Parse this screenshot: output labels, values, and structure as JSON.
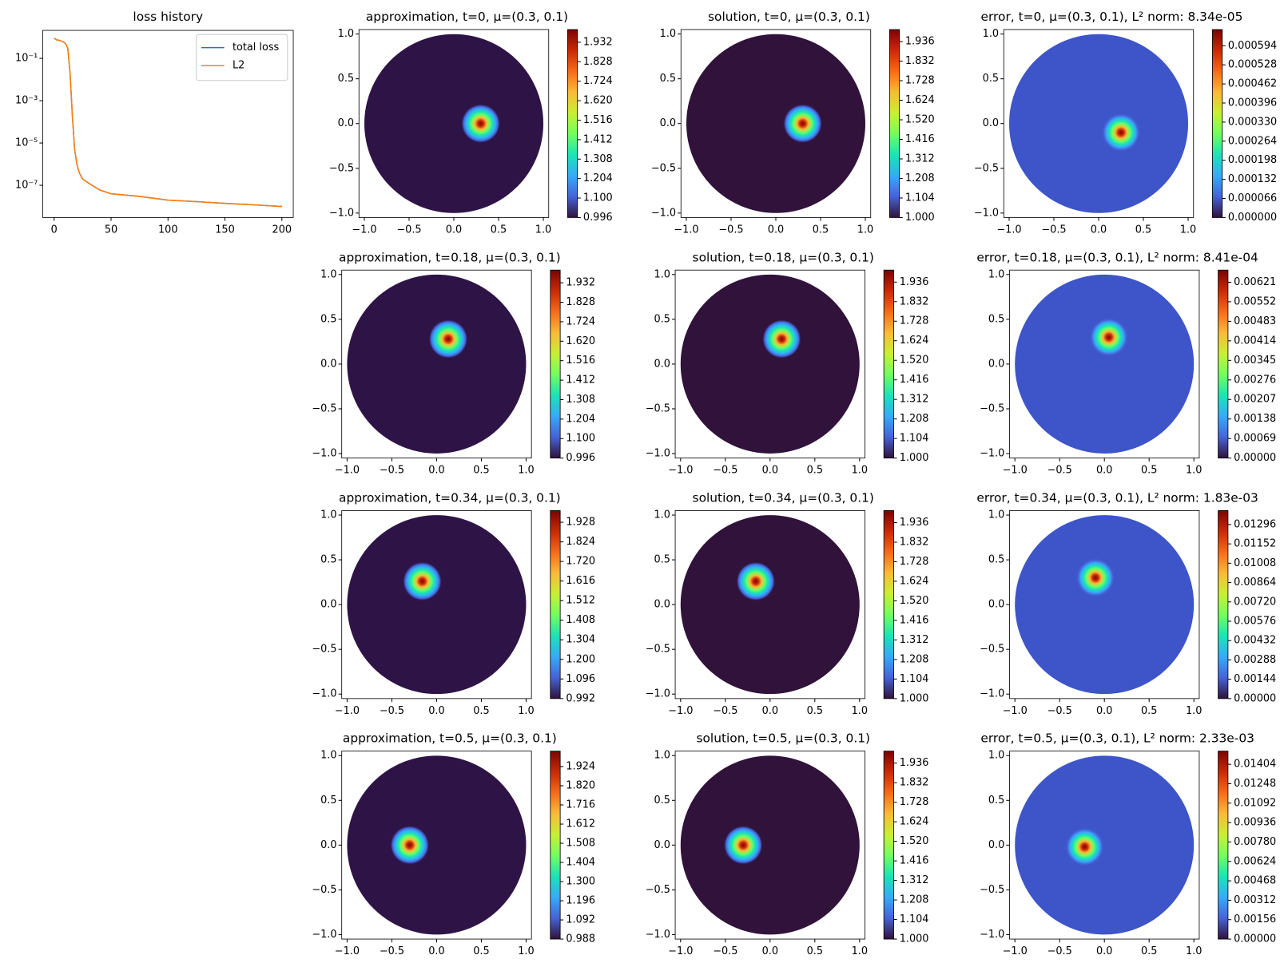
{
  "chart_data": [
    {
      "type": "line",
      "title": "loss history",
      "yscale": "log",
      "legend": "upper right",
      "x": [
        0,
        2,
        5,
        8,
        10,
        12,
        14,
        16,
        18,
        20,
        22,
        25,
        30,
        40,
        50,
        75,
        100,
        125,
        150,
        175,
        200
      ],
      "series": [
        {
          "name": "total loss",
          "color": "#1f77b4",
          "values": [
            0.9,
            0.75,
            0.7,
            0.6,
            0.5,
            0.3,
            0.02,
            0.0002,
            5e-06,
            1e-06,
            4e-07,
            2e-07,
            1.3e-07,
            6e-08,
            4e-08,
            3e-08,
            2e-08,
            1.7e-08,
            1.4e-08,
            1.2e-08,
            1e-08
          ]
        },
        {
          "name": "L2",
          "color": "#ff7f0e",
          "values": [
            0.9,
            0.76,
            0.7,
            0.6,
            0.5,
            0.3,
            0.02,
            0.0002,
            5e-06,
            1e-06,
            4e-07,
            2e-07,
            1.3e-07,
            6e-08,
            4e-08,
            3e-08,
            2e-08,
            1.7e-08,
            1.4e-08,
            1.2e-08,
            1e-08
          ]
        }
      ],
      "xlim": [
        -10,
        210
      ],
      "xticks": [
        0,
        50,
        100,
        150,
        200
      ],
      "ylim": [
        3e-09,
        2.1
      ],
      "yticks": [
        {
          "value": 0.1,
          "label": "10⁻¹"
        },
        {
          "value": 0.001,
          "label": "10⁻³"
        },
        {
          "value": 1e-05,
          "label": "10⁻⁵"
        },
        {
          "value": 1e-07,
          "label": "10⁻⁷"
        }
      ]
    },
    {
      "type": "heatmap",
      "title": "approximation, t=0, μ=(0.3, 0.1)",
      "background": "#2e1446",
      "peak": [
        0.3,
        0
      ],
      "xlim": [
        -1.06,
        1.06
      ],
      "ylim": [
        -1.05,
        1.05
      ],
      "xticks": [
        {
          "value": -1,
          "label": "−1.0"
        },
        {
          "value": -0.5,
          "label": "−0.5"
        },
        {
          "value": 0,
          "label": "0.0"
        },
        0.5,
        {
          "value": 1,
          "label": "1.0"
        }
      ],
      "yticks": [
        {
          "value": -1,
          "label": "−1.0"
        },
        {
          "value": -0.5,
          "label": "−0.5"
        },
        {
          "value": 0,
          "label": "0.0"
        },
        0.5,
        {
          "value": 1,
          "label": "1.0"
        }
      ],
      "zlim": [
        0.996,
        2.0
      ],
      "zticks": [
        0.996,
        {
          "value": 1.1,
          "label": "1.100"
        },
        1.204,
        1.308,
        1.412,
        1.516,
        {
          "value": 1.62,
          "label": "1.620"
        },
        1.724,
        1.828,
        1.932
      ]
    },
    {
      "type": "heatmap",
      "title": "solution, t=0, μ=(0.3, 0.1)",
      "background": "#30123b",
      "peak": [
        0.3,
        0
      ],
      "xlim": [
        -1.06,
        1.06
      ],
      "ylim": [
        -1.05,
        1.05
      ],
      "xticks": [
        {
          "value": -1,
          "label": "−1.0"
        },
        {
          "value": -0.5,
          "label": "−0.5"
        },
        {
          "value": 0,
          "label": "0.0"
        },
        0.5,
        {
          "value": 1,
          "label": "1.0"
        }
      ],
      "yticks": [
        {
          "value": -1,
          "label": "−1.0"
        },
        {
          "value": -0.5,
          "label": "−0.5"
        },
        {
          "value": 0,
          "label": "0.0"
        },
        0.5,
        {
          "value": 1,
          "label": "1.0"
        }
      ],
      "zlim": [
        1.0,
        2.0
      ],
      "zticks": [
        {
          "value": 1,
          "label": "1.000"
        },
        1.104,
        1.208,
        1.312,
        1.416,
        {
          "value": 1.52,
          "label": "1.520"
        },
        1.624,
        1.728,
        1.832,
        1.936
      ]
    },
    {
      "type": "heatmap",
      "title": "error, t=0, μ=(0.3, 0.1), L² norm: 8.34e-05",
      "background": "#3d55c8",
      "peak": [
        0.25,
        -0.1
      ],
      "xlim": [
        -1.06,
        1.06
      ],
      "ylim": [
        -1.05,
        1.05
      ],
      "xticks": [
        {
          "value": -1,
          "label": "−1.0"
        },
        {
          "value": -0.5,
          "label": "−0.5"
        },
        {
          "value": 0,
          "label": "0.0"
        },
        0.5,
        {
          "value": 1,
          "label": "1.0"
        }
      ],
      "yticks": [
        {
          "value": -1,
          "label": "−1.0"
        },
        {
          "value": -0.5,
          "label": "−0.5"
        },
        {
          "value": 0,
          "label": "0.0"
        },
        0.5,
        {
          "value": 1,
          "label": "1.0"
        }
      ],
      "zlim": [
        0,
        0.00065
      ],
      "zticks": [
        {
          "value": 0,
          "label": "0.000000"
        },
        6.6e-05,
        0.000132,
        0.000198,
        0.000264,
        {
          "value": 0.00033,
          "label": "0.000330"
        },
        0.000396,
        0.000462,
        0.000528,
        0.000594
      ]
    },
    {
      "type": "heatmap",
      "title": "approximation, t=0.18, μ=(0.3, 0.1)",
      "background": "#2e1446",
      "peak": [
        0.13,
        0.28
      ],
      "xlim": [
        -1.06,
        1.06
      ],
      "ylim": [
        -1.05,
        1.05
      ],
      "xticks": [
        {
          "value": -1,
          "label": "−1.0"
        },
        {
          "value": -0.5,
          "label": "−0.5"
        },
        {
          "value": 0,
          "label": "0.0"
        },
        0.5,
        {
          "value": 1,
          "label": "1.0"
        }
      ],
      "yticks": [
        {
          "value": -1,
          "label": "−1.0"
        },
        {
          "value": -0.5,
          "label": "−0.5"
        },
        {
          "value": 0,
          "label": "0.0"
        },
        0.5,
        {
          "value": 1,
          "label": "1.0"
        }
      ],
      "zlim": [
        0.996,
        2.0
      ],
      "zticks": [
        0.996,
        {
          "value": 1.1,
          "label": "1.100"
        },
        1.204,
        1.308,
        1.412,
        1.516,
        {
          "value": 1.62,
          "label": "1.620"
        },
        1.724,
        1.828,
        1.932
      ]
    },
    {
      "type": "heatmap",
      "title": "solution, t=0.18, μ=(0.3, 0.1)",
      "background": "#30123b",
      "peak": [
        0.13,
        0.28
      ],
      "xlim": [
        -1.06,
        1.06
      ],
      "ylim": [
        -1.05,
        1.05
      ],
      "xticks": [
        {
          "value": -1,
          "label": "−1.0"
        },
        {
          "value": -0.5,
          "label": "−0.5"
        },
        {
          "value": 0,
          "label": "0.0"
        },
        0.5,
        {
          "value": 1,
          "label": "1.0"
        }
      ],
      "yticks": [
        {
          "value": -1,
          "label": "−1.0"
        },
        {
          "value": -0.5,
          "label": "−0.5"
        },
        {
          "value": 0,
          "label": "0.0"
        },
        0.5,
        {
          "value": 1,
          "label": "1.0"
        }
      ],
      "zlim": [
        1.0,
        2.0
      ],
      "zticks": [
        {
          "value": 1,
          "label": "1.000"
        },
        1.104,
        1.208,
        1.312,
        1.416,
        {
          "value": 1.52,
          "label": "1.520"
        },
        1.624,
        1.728,
        1.832,
        1.936
      ]
    },
    {
      "type": "heatmap",
      "title": "error, t=0.18, μ=(0.3, 0.1), L² norm: 8.41e-04",
      "background": "#3d55c8",
      "peak": [
        0.05,
        0.3
      ],
      "xlim": [
        -1.06,
        1.06
      ],
      "ylim": [
        -1.05,
        1.05
      ],
      "xticks": [
        {
          "value": -1,
          "label": "−1.0"
        },
        {
          "value": -0.5,
          "label": "−0.5"
        },
        {
          "value": 0,
          "label": "0.0"
        },
        0.5,
        {
          "value": 1,
          "label": "1.0"
        }
      ],
      "yticks": [
        {
          "value": -1,
          "label": "−1.0"
        },
        {
          "value": -0.5,
          "label": "−0.5"
        },
        {
          "value": 0,
          "label": "0.0"
        },
        0.5,
        {
          "value": 1,
          "label": "1.0"
        }
      ],
      "zlim": [
        0,
        0.00664
      ],
      "zticks": [
        {
          "value": 0,
          "label": "0.00000"
        },
        0.00069,
        0.00138,
        0.00207,
        0.00276,
        0.00345,
        0.00414,
        0.00483,
        0.00552,
        0.00621
      ]
    },
    {
      "type": "heatmap",
      "title": "approximation, t=0.34, μ=(0.3, 0.1)",
      "background": "#2e1446",
      "peak": [
        -0.16,
        0.26
      ],
      "xlim": [
        -1.06,
        1.06
      ],
      "ylim": [
        -1.05,
        1.05
      ],
      "xticks": [
        {
          "value": -1,
          "label": "−1.0"
        },
        {
          "value": -0.5,
          "label": "−0.5"
        },
        {
          "value": 0,
          "label": "0.0"
        },
        0.5,
        {
          "value": 1,
          "label": "1.0"
        }
      ],
      "yticks": [
        {
          "value": -1,
          "label": "−1.0"
        },
        {
          "value": -0.5,
          "label": "−0.5"
        },
        {
          "value": 0,
          "label": "0.0"
        },
        0.5,
        {
          "value": 1,
          "label": "1.0"
        }
      ],
      "zlim": [
        0.992,
        1.99
      ],
      "zticks": [
        0.992,
        1.096,
        {
          "value": 1.2,
          "label": "1.200"
        },
        1.304,
        1.408,
        1.512,
        1.616,
        {
          "value": 1.72,
          "label": "1.720"
        },
        1.824,
        1.928
      ]
    },
    {
      "type": "heatmap",
      "title": "solution, t=0.34, μ=(0.3, 0.1)",
      "background": "#30123b",
      "peak": [
        -0.16,
        0.26
      ],
      "xlim": [
        -1.06,
        1.06
      ],
      "ylim": [
        -1.05,
        1.05
      ],
      "xticks": [
        {
          "value": -1,
          "label": "−1.0"
        },
        {
          "value": -0.5,
          "label": "−0.5"
        },
        {
          "value": 0,
          "label": "0.0"
        },
        0.5,
        {
          "value": 1,
          "label": "1.0"
        }
      ],
      "yticks": [
        {
          "value": -1,
          "label": "−1.0"
        },
        {
          "value": -0.5,
          "label": "−0.5"
        },
        {
          "value": 0,
          "label": "0.0"
        },
        0.5,
        {
          "value": 1,
          "label": "1.0"
        }
      ],
      "zlim": [
        1.0,
        2.0
      ],
      "zticks": [
        {
          "value": 1,
          "label": "1.000"
        },
        1.104,
        1.208,
        1.312,
        1.416,
        {
          "value": 1.52,
          "label": "1.520"
        },
        1.624,
        1.728,
        1.832,
        1.936
      ]
    },
    {
      "type": "heatmap",
      "title": "error, t=0.34, μ=(0.3, 0.1), L² norm: 1.83e-03",
      "background": "#3d55c8",
      "peak": [
        -0.1,
        0.3
      ],
      "xlim": [
        -1.06,
        1.06
      ],
      "ylim": [
        -1.05,
        1.05
      ],
      "xticks": [
        {
          "value": -1,
          "label": "−1.0"
        },
        {
          "value": -0.5,
          "label": "−0.5"
        },
        {
          "value": 0,
          "label": "0.0"
        },
        0.5,
        {
          "value": 1,
          "label": "1.0"
        }
      ],
      "yticks": [
        {
          "value": -1,
          "label": "−1.0"
        },
        {
          "value": -0.5,
          "label": "−0.5"
        },
        {
          "value": 0,
          "label": "0.0"
        },
        0.5,
        {
          "value": 1,
          "label": "1.0"
        }
      ],
      "zlim": [
        0,
        0.014
      ],
      "zticks": [
        {
          "value": 0,
          "label": "0.00000"
        },
        0.00144,
        0.00288,
        0.00432,
        0.00576,
        {
          "value": 0.0072,
          "label": "0.00720"
        },
        0.00864,
        0.01008,
        0.01152,
        0.01296
      ]
    },
    {
      "type": "heatmap",
      "title": "approximation, t=0.5, μ=(0.3, 0.1)",
      "background": "#2e1446",
      "peak": [
        -0.3,
        0
      ],
      "xlim": [
        -1.06,
        1.06
      ],
      "ylim": [
        -1.05,
        1.05
      ],
      "xticks": [
        {
          "value": -1,
          "label": "−1.0"
        },
        {
          "value": -0.5,
          "label": "−0.5"
        },
        {
          "value": 0,
          "label": "0.0"
        },
        0.5,
        {
          "value": 1,
          "label": "1.0"
        }
      ],
      "yticks": [
        {
          "value": -1,
          "label": "−1.0"
        },
        {
          "value": -0.5,
          "label": "−0.5"
        },
        {
          "value": 0,
          "label": "0.0"
        },
        0.5,
        {
          "value": 1,
          "label": "1.0"
        }
      ],
      "zlim": [
        0.988,
        2.008
      ],
      "zticks": [
        0.988,
        1.092,
        1.196,
        {
          "value": 1.3,
          "label": "1.300"
        },
        1.404,
        1.508,
        1.612,
        1.716,
        {
          "value": 1.82,
          "label": "1.820"
        },
        1.924
      ]
    },
    {
      "type": "heatmap",
      "title": "solution, t=0.5, μ=(0.3, 0.1)",
      "background": "#30123b",
      "peak": [
        -0.3,
        0
      ],
      "xlim": [
        -1.06,
        1.06
      ],
      "ylim": [
        -1.05,
        1.05
      ],
      "xticks": [
        {
          "value": -1,
          "label": "−1.0"
        },
        {
          "value": -0.5,
          "label": "−0.5"
        },
        {
          "value": 0,
          "label": "0.0"
        },
        0.5,
        {
          "value": 1,
          "label": "1.0"
        }
      ],
      "yticks": [
        {
          "value": -1,
          "label": "−1.0"
        },
        {
          "value": -0.5,
          "label": "−0.5"
        },
        {
          "value": 0,
          "label": "0.0"
        },
        0.5,
        {
          "value": 1,
          "label": "1.0"
        }
      ],
      "zlim": [
        1.0,
        2.0
      ],
      "zticks": [
        {
          "value": 1,
          "label": "1.000"
        },
        1.104,
        1.208,
        1.312,
        1.416,
        {
          "value": 1.52,
          "label": "1.520"
        },
        1.624,
        1.728,
        1.832,
        1.936
      ]
    },
    {
      "type": "heatmap",
      "title": "error, t=0.5, μ=(0.3, 0.1), L² norm: 2.33e-03",
      "background": "#3d55c8",
      "peak": [
        -0.22,
        -0.02
      ],
      "xlim": [
        -1.06,
        1.06
      ],
      "ylim": [
        -1.05,
        1.05
      ],
      "xticks": [
        {
          "value": -1,
          "label": "−1.0"
        },
        {
          "value": -0.5,
          "label": "−0.5"
        },
        {
          "value": 0,
          "label": "0.0"
        },
        0.5,
        {
          "value": 1,
          "label": "1.0"
        }
      ],
      "yticks": [
        {
          "value": -1,
          "label": "−1.0"
        },
        {
          "value": -0.5,
          "label": "−0.5"
        },
        {
          "value": 0,
          "label": "0.0"
        },
        0.5,
        {
          "value": 1,
          "label": "1.0"
        }
      ],
      "zlim": [
        0,
        0.0151
      ],
      "zticks": [
        {
          "value": 0,
          "label": "0.00000"
        },
        0.00156,
        0.00312,
        0.00468,
        0.00624,
        {
          "value": 0.0078,
          "label": "0.00780"
        },
        0.00936,
        0.01092,
        0.01248,
        0.01404
      ]
    }
  ]
}
